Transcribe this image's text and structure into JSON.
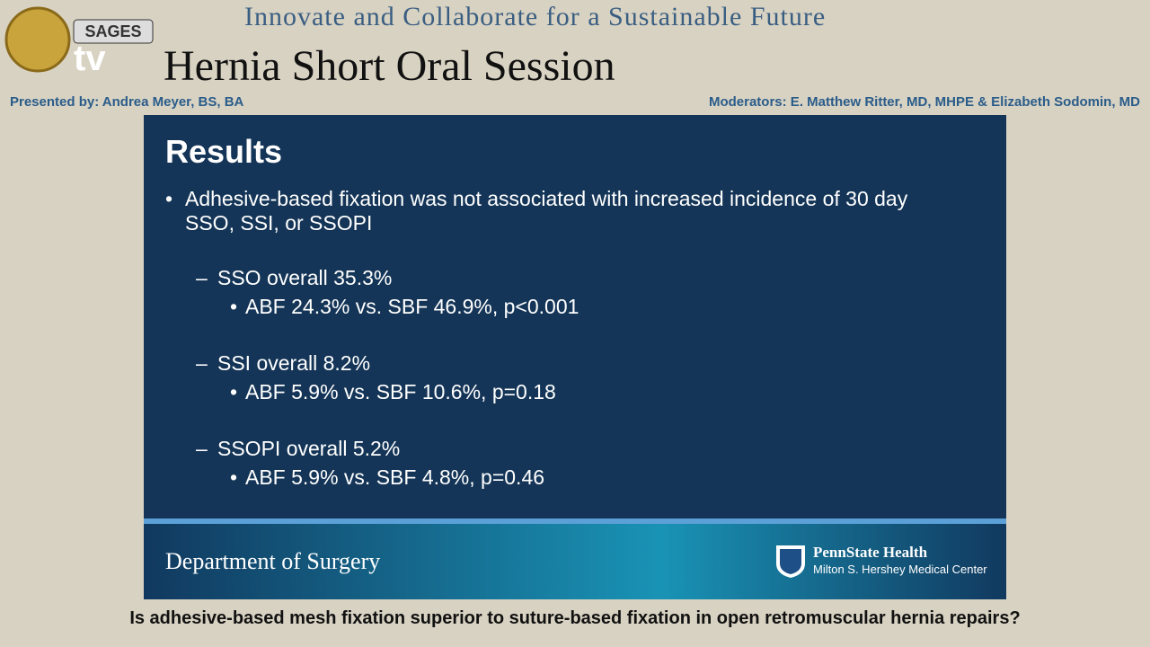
{
  "header": {
    "tagline": "Innovate and Collaborate for a Sustainable Future",
    "session": "Hernia Short Oral Session",
    "presenter": "Presented by: Andrea Meyer, BS, BA",
    "moderators": "Moderators: E. Matthew Ritter, MD, MHPE & Elizabeth Sodomin, MD",
    "logo_text": "SAGES",
    "logo_tv": "tv"
  },
  "slide": {
    "title": "Results",
    "bullet": "Adhesive-based fixation was not associated with increased incidence of 30 day SSO, SSI, or SSOPI",
    "items": [
      {
        "label": "SSO overall 35.3%",
        "detail": "ABF 24.3% vs. SBF 46.9%, p<0.001"
      },
      {
        "label": "SSI overall 8.2%",
        "detail": "ABF 5.9% vs. SBF 10.6%, p=0.18"
      },
      {
        "label": "SSOPI overall 5.2%",
        "detail": "ABF 5.9% vs. SBF 4.8%, p=0.46"
      }
    ],
    "footer_left": "Department of Surgery",
    "footer_brand": "PennState Health",
    "footer_sub": "Milton S. Hershey Medical Center"
  },
  "caption": "Is adhesive-based mesh fixation superior to suture-based fixation in open retromuscular hernia repairs?"
}
